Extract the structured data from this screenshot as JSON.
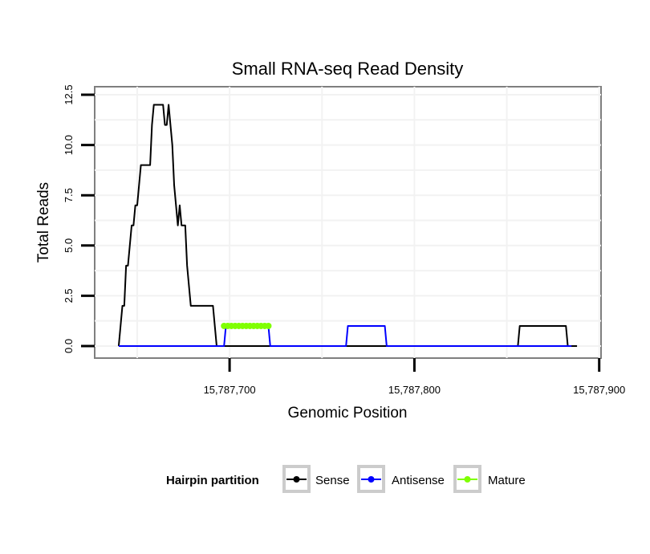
{
  "chart_data": {
    "type": "line",
    "title": "Small RNA-seq Read Density",
    "xlabel": "Genomic Position",
    "ylabel": "Total Reads",
    "xlim": [
      15787627,
      15787901
    ],
    "ylim": [
      -0.6,
      12.9
    ],
    "x_ticks": [
      15787700,
      15787800,
      15787900
    ],
    "x_tick_labels": [
      "15,787,700",
      "15,787,800",
      "15,787,900"
    ],
    "y_ticks": [
      0,
      2.5,
      5,
      7.5,
      10,
      12.5
    ],
    "y_tick_labels": [
      "0.0",
      "2.5",
      "5.0",
      "7.5",
      "10.0",
      "12.5"
    ],
    "grid": true,
    "legend": {
      "title": "Hairpin partition",
      "position": "bottom",
      "entries": [
        "Sense",
        "Antisense",
        "Mature"
      ]
    },
    "series": [
      {
        "name": "Sense",
        "color": "#000000",
        "x": [
          15787640,
          15787641,
          15787642,
          15787643,
          15787644,
          15787645,
          15787646,
          15787647,
          15787648,
          15787649,
          15787650,
          15787651,
          15787652,
          15787653,
          15787654,
          15787655,
          15787656,
          15787657,
          15787658,
          15787659,
          15787660,
          15787661,
          15787662,
          15787663,
          15787664,
          15787665,
          15787666,
          15787667,
          15787668,
          15787669,
          15787670,
          15787671,
          15787672,
          15787673,
          15787674,
          15787675,
          15787676,
          15787677,
          15787678,
          15787679,
          15787680,
          15787681,
          15787682,
          15787683,
          15787684,
          15787685,
          15787686,
          15787687,
          15787688,
          15787689,
          15787690,
          15787691,
          15787692,
          15787693,
          15787694,
          15787695,
          15787696,
          15787697,
          15787698,
          15787710,
          15787720,
          15787730,
          15787740,
          15787750,
          15787760,
          15787770,
          15787780,
          15787790,
          15787800,
          15787810,
          15787820,
          15787830,
          15787840,
          15787850,
          15787855,
          15787856,
          15787857,
          15787858,
          15787860,
          15787870,
          15787880,
          15787881,
          15787882,
          15787883,
          15787884,
          15787885,
          15787886,
          15787888
        ],
        "values": [
          0,
          1,
          2,
          2,
          4,
          4,
          5,
          6,
          6,
          7,
          7,
          8,
          9,
          9,
          9,
          9,
          9,
          9,
          11,
          12,
          12,
          12,
          12,
          12,
          12,
          11,
          11,
          12,
          11,
          10,
          8,
          7,
          6,
          7,
          6,
          6,
          6,
          4,
          3,
          2,
          2,
          2,
          2,
          2,
          2,
          2,
          2,
          2,
          2,
          2,
          2,
          2,
          1,
          0,
          0,
          0,
          0,
          0,
          0,
          0,
          0,
          0,
          0,
          0,
          0,
          0,
          0,
          0,
          0,
          0,
          0,
          0,
          0,
          0,
          0,
          0,
          1,
          1,
          1,
          1,
          1,
          1,
          1,
          0,
          0,
          0,
          0,
          0
        ]
      },
      {
        "name": "Antisense",
        "color": "#0000ff",
        "x": [
          15787640,
          15787695,
          15787697,
          15787698,
          15787715,
          15787720,
          15787721,
          15787722,
          15787740,
          15787760,
          15787762,
          15787763,
          15787764,
          15787783,
          15787784,
          15787785,
          15787786,
          15787800,
          15787840,
          15787870,
          15787885
        ],
        "values": [
          0,
          0,
          0,
          1,
          1,
          1,
          1,
          0,
          0,
          0,
          0,
          0,
          1,
          1,
          1,
          0,
          0,
          0,
          0,
          0,
          0
        ]
      },
      {
        "name": "Mature",
        "color": "#7fff00",
        "x": [
          15787697,
          15787699,
          15787701,
          15787703,
          15787705,
          15787707,
          15787709,
          15787711,
          15787713,
          15787715,
          15787717,
          15787719,
          15787721
        ],
        "values": [
          1,
          1,
          1,
          1,
          1,
          1,
          1,
          1,
          1,
          1,
          1,
          1,
          1
        ]
      }
    ]
  }
}
